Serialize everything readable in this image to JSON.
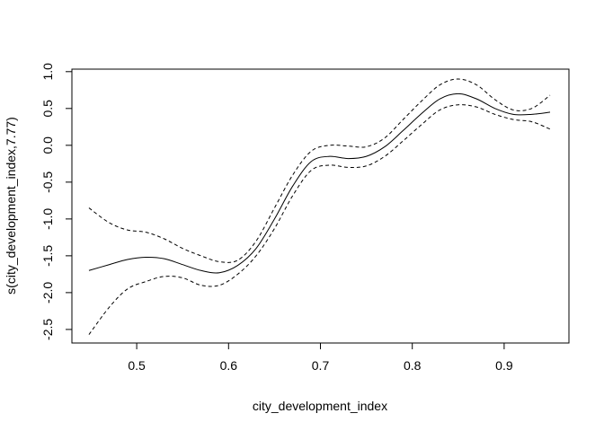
{
  "chart_data": {
    "type": "line",
    "title": "",
    "xlabel": "city_development_index",
    "ylabel": "s(city_development_index,7.77)",
    "xlim": [
      0.45,
      0.95
    ],
    "ylim": [
      -2.55,
      0.9
    ],
    "xticks": [
      0.5,
      0.6,
      0.7,
      0.8,
      0.9
    ],
    "xtick_labels": [
      "0.5",
      "0.6",
      "0.7",
      "0.8",
      "0.9"
    ],
    "yticks": [
      -2.5,
      -2.0,
      -1.5,
      -1.0,
      -0.5,
      0.0,
      0.5,
      1.0
    ],
    "ytick_labels": [
      "-2.5",
      "-2.0",
      "-1.5",
      "-1.0",
      "-0.5",
      "0.0",
      "0.5",
      "1.0"
    ],
    "grid": false,
    "legend": "none",
    "x": [
      0.448,
      0.47,
      0.49,
      0.51,
      0.53,
      0.55,
      0.57,
      0.59,
      0.61,
      0.63,
      0.65,
      0.67,
      0.69,
      0.71,
      0.73,
      0.75,
      0.77,
      0.79,
      0.81,
      0.83,
      0.85,
      0.87,
      0.89,
      0.91,
      0.93,
      0.95
    ],
    "series": [
      {
        "style": "solid",
        "values": [
          -1.7,
          -1.62,
          -1.55,
          -1.52,
          -1.54,
          -1.62,
          -1.7,
          -1.73,
          -1.63,
          -1.4,
          -1.0,
          -0.55,
          -0.22,
          -0.15,
          -0.18,
          -0.15,
          -0.02,
          0.2,
          0.43,
          0.63,
          0.7,
          0.63,
          0.5,
          0.42,
          0.42,
          0.45
        ]
      },
      {
        "style": "dashed",
        "values": [
          -0.85,
          -1.05,
          -1.15,
          -1.18,
          -1.27,
          -1.4,
          -1.5,
          -1.58,
          -1.56,
          -1.3,
          -0.85,
          -0.4,
          -0.08,
          0.0,
          -0.01,
          -0.02,
          0.1,
          0.35,
          0.6,
          0.82,
          0.9,
          0.82,
          0.62,
          0.48,
          0.5,
          0.68
        ]
      },
      {
        "style": "dashed",
        "values": [
          -2.57,
          -2.2,
          -1.95,
          -1.85,
          -1.78,
          -1.8,
          -1.9,
          -1.9,
          -1.75,
          -1.5,
          -1.13,
          -0.68,
          -0.34,
          -0.27,
          -0.3,
          -0.28,
          -0.15,
          0.06,
          0.28,
          0.48,
          0.55,
          0.52,
          0.42,
          0.35,
          0.32,
          0.22
        ]
      }
    ]
  }
}
